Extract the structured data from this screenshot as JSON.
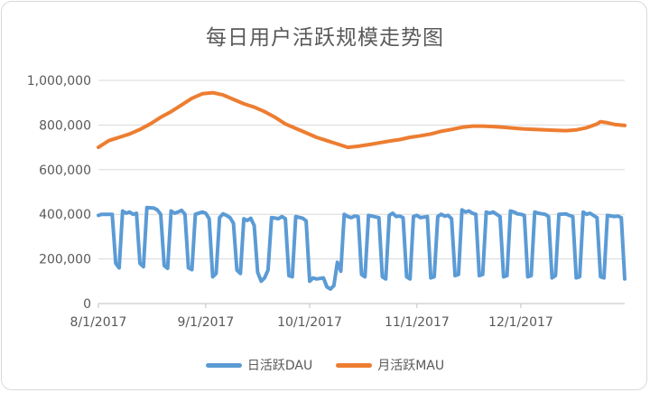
{
  "chart_data": {
    "type": "line",
    "title": "每日用户活跃规模走势图",
    "x_tick_labels": [
      "8/1/2017",
      "9/1/2017",
      "10/1/2017",
      "11/1/2017",
      "12/1/2017"
    ],
    "x_tick_dates": [
      "2017-08-01",
      "2017-09-01",
      "2017-10-01",
      "2017-11-01",
      "2017-12-01"
    ],
    "x_range": [
      "2017-08-01",
      "2017-12-31"
    ],
    "y_tick_labels": [
      "0",
      "200,000",
      "400,000",
      "600,000",
      "800,000",
      "1,000,000"
    ],
    "ylim": [
      0,
      1000000
    ],
    "grid": "horizontal",
    "legend_position": "bottom",
    "series": [
      {
        "name": "日活跃DAU",
        "color": "#5b9bd5",
        "points": [
          [
            "2017-08-01",
            395000
          ],
          [
            "2017-08-02",
            400000
          ],
          [
            "2017-08-05",
            400000
          ],
          [
            "2017-08-06",
            180000
          ],
          [
            "2017-08-07",
            160000
          ],
          [
            "2017-08-08",
            415000
          ],
          [
            "2017-08-09",
            405000
          ],
          [
            "2017-08-10",
            410000
          ],
          [
            "2017-08-11",
            400000
          ],
          [
            "2017-08-12",
            405000
          ],
          [
            "2017-08-13",
            180000
          ],
          [
            "2017-08-14",
            165000
          ],
          [
            "2017-08-15",
            430000
          ],
          [
            "2017-08-17",
            428000
          ],
          [
            "2017-08-18",
            420000
          ],
          [
            "2017-08-19",
            400000
          ],
          [
            "2017-08-20",
            170000
          ],
          [
            "2017-08-21",
            158000
          ],
          [
            "2017-08-22",
            415000
          ],
          [
            "2017-08-23",
            405000
          ],
          [
            "2017-08-24",
            410000
          ],
          [
            "2017-08-25",
            418000
          ],
          [
            "2017-08-26",
            400000
          ],
          [
            "2017-08-27",
            160000
          ],
          [
            "2017-08-28",
            152000
          ],
          [
            "2017-08-29",
            400000
          ],
          [
            "2017-08-31",
            410000
          ],
          [
            "2017-09-01",
            405000
          ],
          [
            "2017-09-02",
            380000
          ],
          [
            "2017-09-03",
            120000
          ],
          [
            "2017-09-04",
            135000
          ],
          [
            "2017-09-05",
            385000
          ],
          [
            "2017-09-06",
            402000
          ],
          [
            "2017-09-07",
            395000
          ],
          [
            "2017-09-08",
            385000
          ],
          [
            "2017-09-09",
            360000
          ],
          [
            "2017-09-10",
            150000
          ],
          [
            "2017-09-11",
            135000
          ],
          [
            "2017-09-12",
            380000
          ],
          [
            "2017-09-13",
            372000
          ],
          [
            "2017-09-14",
            382000
          ],
          [
            "2017-09-15",
            350000
          ],
          [
            "2017-09-16",
            140000
          ],
          [
            "2017-09-17",
            100000
          ],
          [
            "2017-09-18",
            115000
          ],
          [
            "2017-09-19",
            150000
          ],
          [
            "2017-09-20",
            385000
          ],
          [
            "2017-09-21",
            383000
          ],
          [
            "2017-09-22",
            380000
          ],
          [
            "2017-09-23",
            390000
          ],
          [
            "2017-09-24",
            380000
          ],
          [
            "2017-09-25",
            125000
          ],
          [
            "2017-09-26",
            120000
          ],
          [
            "2017-09-27",
            390000
          ],
          [
            "2017-09-29",
            382000
          ],
          [
            "2017-09-30",
            370000
          ],
          [
            "2017-10-01",
            100000
          ],
          [
            "2017-10-02",
            115000
          ],
          [
            "2017-10-03",
            110000
          ],
          [
            "2017-10-05",
            115000
          ],
          [
            "2017-10-06",
            75000
          ],
          [
            "2017-10-07",
            65000
          ],
          [
            "2017-10-08",
            80000
          ],
          [
            "2017-10-09",
            185000
          ],
          [
            "2017-10-10",
            145000
          ],
          [
            "2017-10-11",
            400000
          ],
          [
            "2017-10-12",
            390000
          ],
          [
            "2017-10-13",
            385000
          ],
          [
            "2017-10-14",
            392000
          ],
          [
            "2017-10-15",
            390000
          ],
          [
            "2017-10-16",
            130000
          ],
          [
            "2017-10-17",
            120000
          ],
          [
            "2017-10-18",
            395000
          ],
          [
            "2017-10-19",
            392000
          ],
          [
            "2017-10-21",
            385000
          ],
          [
            "2017-10-22",
            120000
          ],
          [
            "2017-10-23",
            110000
          ],
          [
            "2017-10-24",
            395000
          ],
          [
            "2017-10-25",
            405000
          ],
          [
            "2017-10-26",
            390000
          ],
          [
            "2017-10-27",
            392000
          ],
          [
            "2017-10-28",
            385000
          ],
          [
            "2017-10-29",
            120000
          ],
          [
            "2017-10-30",
            110000
          ],
          [
            "2017-10-31",
            390000
          ],
          [
            "2017-11-01",
            395000
          ],
          [
            "2017-11-02",
            385000
          ],
          [
            "2017-11-04",
            390000
          ],
          [
            "2017-11-05",
            115000
          ],
          [
            "2017-11-06",
            120000
          ],
          [
            "2017-11-07",
            390000
          ],
          [
            "2017-11-08",
            400000
          ],
          [
            "2017-11-09",
            392000
          ],
          [
            "2017-11-10",
            395000
          ],
          [
            "2017-11-11",
            380000
          ],
          [
            "2017-11-12",
            125000
          ],
          [
            "2017-11-13",
            130000
          ],
          [
            "2017-11-14",
            420000
          ],
          [
            "2017-11-15",
            410000
          ],
          [
            "2017-11-16",
            415000
          ],
          [
            "2017-11-17",
            405000
          ],
          [
            "2017-11-18",
            400000
          ],
          [
            "2017-11-19",
            125000
          ],
          [
            "2017-11-20",
            130000
          ],
          [
            "2017-11-21",
            410000
          ],
          [
            "2017-11-22",
            405000
          ],
          [
            "2017-11-23",
            410000
          ],
          [
            "2017-11-24",
            400000
          ],
          [
            "2017-11-25",
            390000
          ],
          [
            "2017-11-26",
            120000
          ],
          [
            "2017-11-27",
            125000
          ],
          [
            "2017-11-28",
            415000
          ],
          [
            "2017-11-29",
            410000
          ],
          [
            "2017-11-30",
            402000
          ],
          [
            "2017-12-01",
            400000
          ],
          [
            "2017-12-02",
            395000
          ],
          [
            "2017-12-03",
            120000
          ],
          [
            "2017-12-04",
            125000
          ],
          [
            "2017-12-05",
            410000
          ],
          [
            "2017-12-06",
            405000
          ],
          [
            "2017-12-08",
            400000
          ],
          [
            "2017-12-09",
            390000
          ],
          [
            "2017-12-10",
            115000
          ],
          [
            "2017-12-11",
            125000
          ],
          [
            "2017-12-12",
            400000
          ],
          [
            "2017-12-14",
            402000
          ],
          [
            "2017-12-15",
            395000
          ],
          [
            "2017-12-16",
            390000
          ],
          [
            "2017-12-17",
            115000
          ],
          [
            "2017-12-18",
            120000
          ],
          [
            "2017-12-19",
            410000
          ],
          [
            "2017-12-20",
            400000
          ],
          [
            "2017-12-21",
            405000
          ],
          [
            "2017-12-23",
            385000
          ],
          [
            "2017-12-24",
            120000
          ],
          [
            "2017-12-25",
            115000
          ],
          [
            "2017-12-26",
            395000
          ],
          [
            "2017-12-28",
            390000
          ],
          [
            "2017-12-29",
            392000
          ],
          [
            "2017-12-30",
            385000
          ],
          [
            "2017-12-31",
            110000
          ]
        ]
      },
      {
        "name": "月活跃MAU",
        "color": "#ed7d31",
        "points": [
          [
            "2017-08-01",
            700000
          ],
          [
            "2017-08-04",
            730000
          ],
          [
            "2017-08-07",
            745000
          ],
          [
            "2017-08-10",
            760000
          ],
          [
            "2017-08-13",
            780000
          ],
          [
            "2017-08-16",
            805000
          ],
          [
            "2017-08-19",
            835000
          ],
          [
            "2017-08-22",
            860000
          ],
          [
            "2017-08-25",
            890000
          ],
          [
            "2017-08-28",
            920000
          ],
          [
            "2017-08-31",
            940000
          ],
          [
            "2017-09-03",
            945000
          ],
          [
            "2017-09-06",
            935000
          ],
          [
            "2017-09-09",
            915000
          ],
          [
            "2017-09-12",
            895000
          ],
          [
            "2017-09-15",
            880000
          ],
          [
            "2017-09-18",
            860000
          ],
          [
            "2017-09-21",
            835000
          ],
          [
            "2017-09-24",
            805000
          ],
          [
            "2017-09-27",
            785000
          ],
          [
            "2017-09-30",
            765000
          ],
          [
            "2017-10-03",
            745000
          ],
          [
            "2017-10-06",
            730000
          ],
          [
            "2017-10-09",
            715000
          ],
          [
            "2017-10-12",
            700000
          ],
          [
            "2017-10-15",
            705000
          ],
          [
            "2017-10-18",
            712000
          ],
          [
            "2017-10-21",
            720000
          ],
          [
            "2017-10-24",
            728000
          ],
          [
            "2017-10-27",
            735000
          ],
          [
            "2017-10-30",
            745000
          ],
          [
            "2017-11-02",
            752000
          ],
          [
            "2017-11-05",
            760000
          ],
          [
            "2017-11-08",
            772000
          ],
          [
            "2017-11-11",
            780000
          ],
          [
            "2017-11-14",
            790000
          ],
          [
            "2017-11-17",
            795000
          ],
          [
            "2017-11-20",
            795000
          ],
          [
            "2017-11-23",
            793000
          ],
          [
            "2017-11-26",
            790000
          ],
          [
            "2017-11-29",
            786000
          ],
          [
            "2017-12-02",
            782000
          ],
          [
            "2017-12-05",
            780000
          ],
          [
            "2017-12-08",
            778000
          ],
          [
            "2017-12-11",
            776000
          ],
          [
            "2017-12-14",
            775000
          ],
          [
            "2017-12-17",
            778000
          ],
          [
            "2017-12-20",
            788000
          ],
          [
            "2017-12-23",
            805000
          ],
          [
            "2017-12-24",
            815000
          ],
          [
            "2017-12-26",
            810000
          ],
          [
            "2017-12-28",
            803000
          ],
          [
            "2017-12-31",
            798000
          ]
        ]
      }
    ]
  }
}
